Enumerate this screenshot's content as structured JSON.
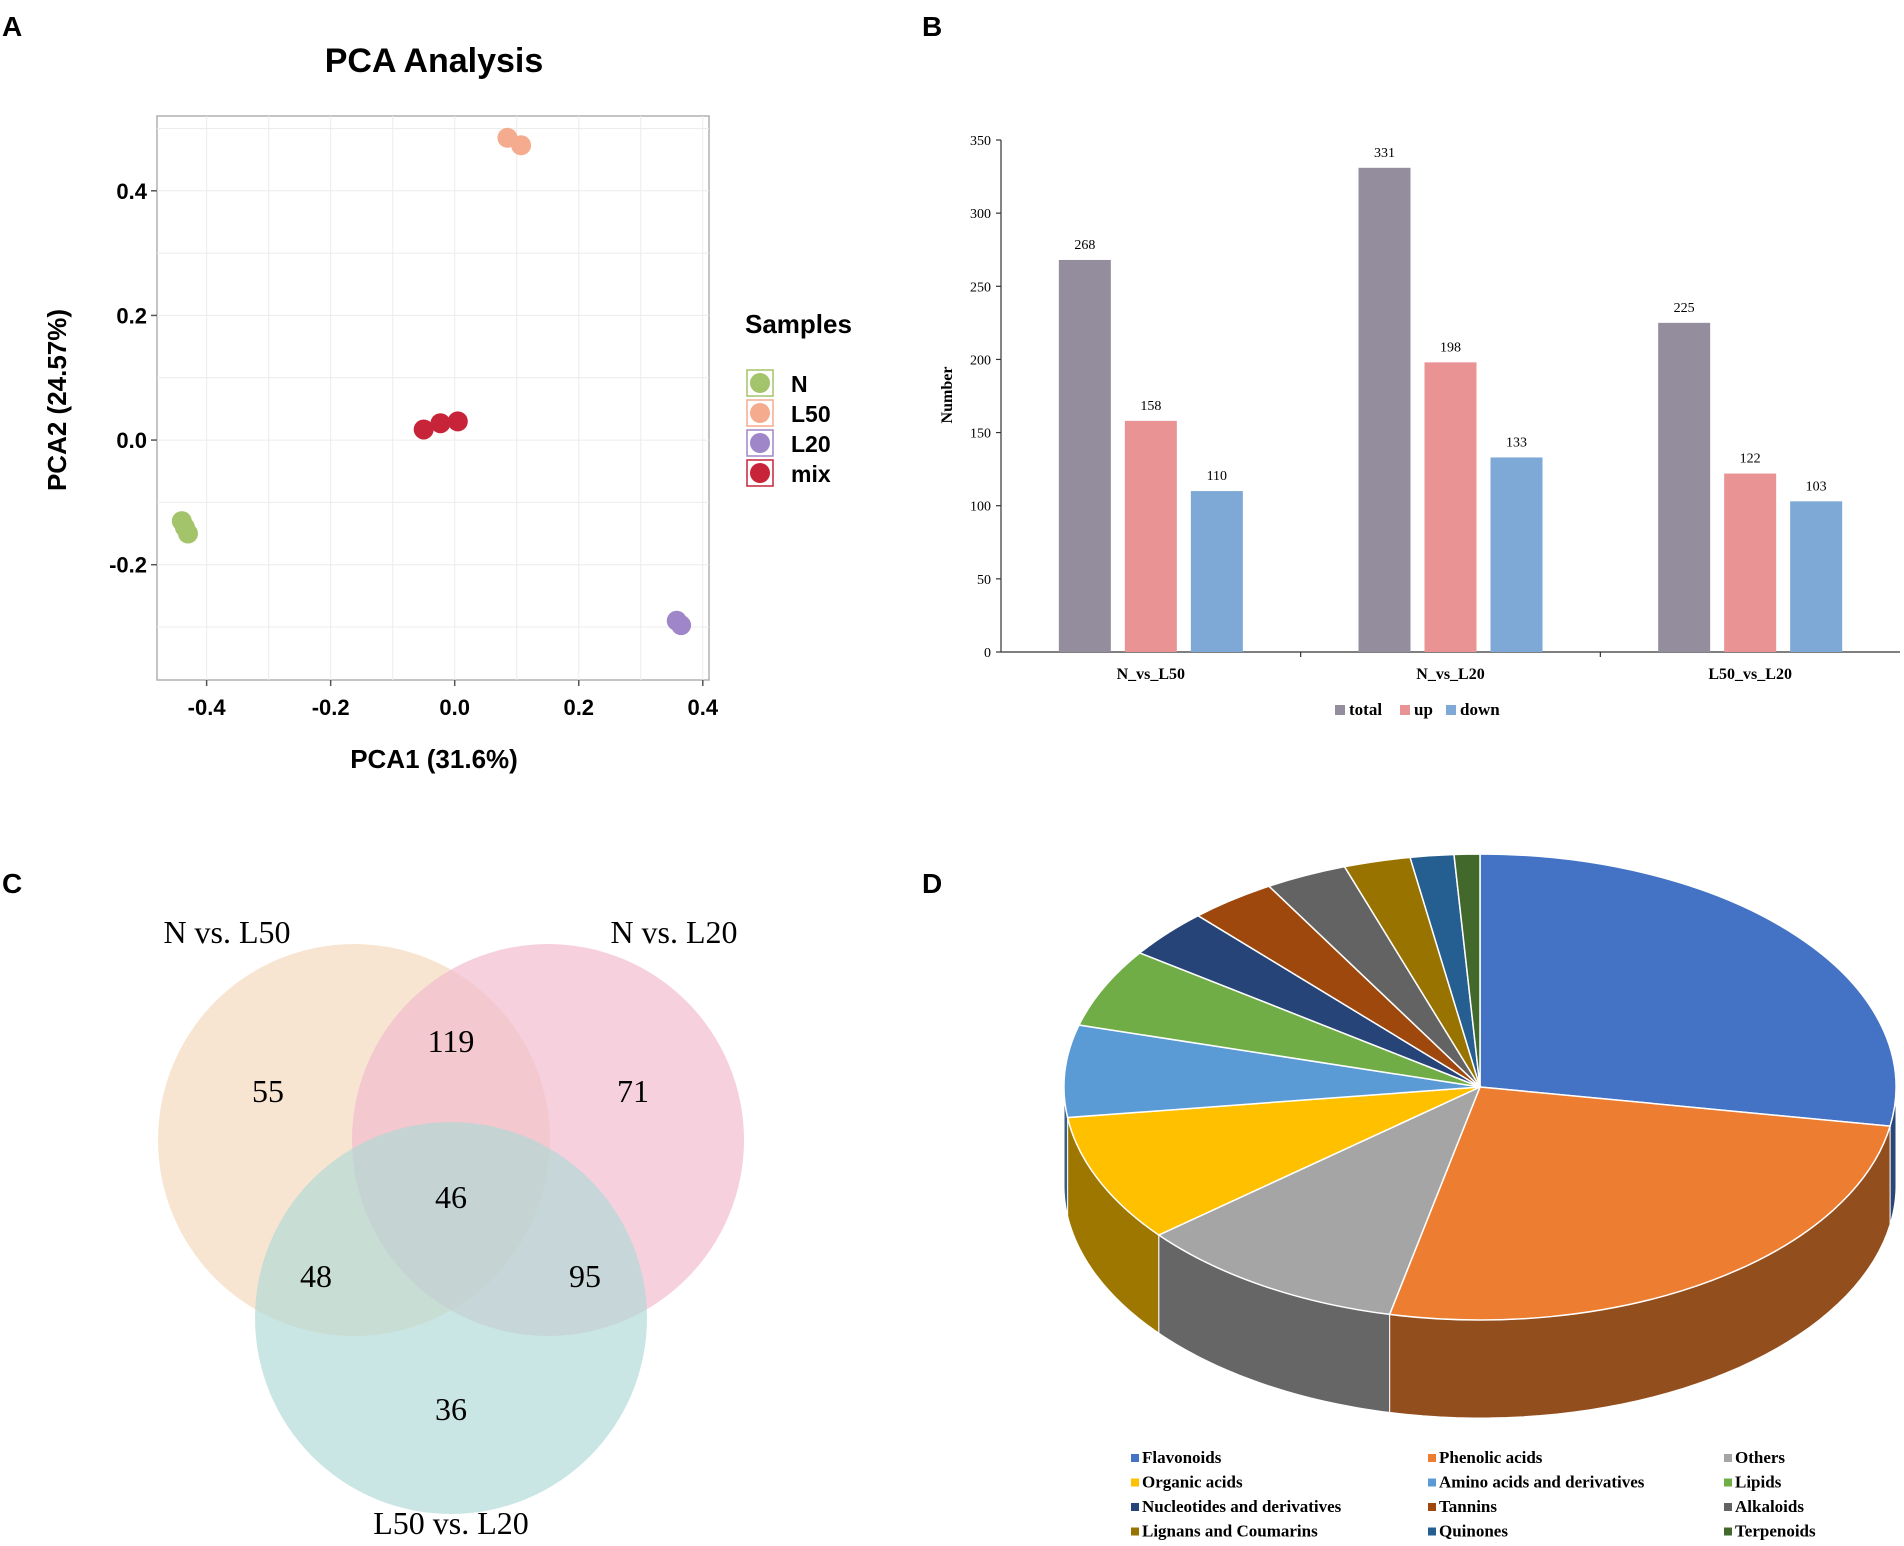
{
  "panels": {
    "a": "A",
    "b": "B",
    "c": "C",
    "d": "D"
  },
  "chart_data": [
    {
      "type": "scatter",
      "panel": "A",
      "title": "PCA Analysis",
      "xlabel": "PCA1 (31.6%)",
      "ylabel": "PCA2 (24.57%)",
      "xlim": [
        -0.48,
        0.41
      ],
      "ylim": [
        -0.385,
        0.52
      ],
      "xticks": [
        -0.4,
        -0.2,
        0.0,
        0.2,
        0.4
      ],
      "xtick_labels": [
        "-0.4",
        "-0.2",
        "0.0",
        "0.2",
        "0.4"
      ],
      "yticks": [
        -0.2,
        0.0,
        0.2,
        0.4
      ],
      "ytick_labels": [
        "-0.2",
        "0.0",
        "0.2",
        "0.4"
      ],
      "grid": true,
      "legend_title": "Samples",
      "legend_position": "right",
      "series": [
        {
          "name": "N",
          "color": "#a4c46b",
          "points": [
            [
              -0.44,
              -0.13
            ],
            [
              -0.435,
              -0.14
            ],
            [
              -0.43,
              -0.15
            ]
          ]
        },
        {
          "name": "L50",
          "color": "#f4ab8e",
          "points": [
            [
              0.085,
              0.485
            ],
            [
              0.107,
              0.473
            ]
          ]
        },
        {
          "name": "L20",
          "color": "#9e86c8",
          "points": [
            [
              0.358,
              -0.29
            ],
            [
              0.365,
              -0.297
            ]
          ]
        },
        {
          "name": "mix",
          "color": "#c7243a",
          "points": [
            [
              -0.05,
              0.017
            ],
            [
              -0.023,
              0.027
            ],
            [
              0.005,
              0.03
            ]
          ]
        }
      ]
    },
    {
      "type": "bar",
      "panel": "B",
      "ylabel": "Number",
      "xlabel": "",
      "ylim": [
        0,
        350
      ],
      "yticks": [
        0,
        50,
        100,
        150,
        200,
        250,
        300,
        350
      ],
      "ytick_labels": [
        "0",
        "50",
        "100",
        "150",
        "200",
        "250",
        "300",
        "350"
      ],
      "categories": [
        "N_vs_L50",
        "N_vs_L20",
        "L50_vs_L20"
      ],
      "legend_position": "bottom",
      "series": [
        {
          "name": "total",
          "color": "#948d9d",
          "values": [
            268,
            331,
            225
          ],
          "labels": [
            "268",
            "331",
            "225"
          ]
        },
        {
          "name": "up",
          "color": "#e99394",
          "values": [
            158,
            198,
            122
          ],
          "labels": [
            "158",
            "198",
            "122"
          ]
        },
        {
          "name": "down",
          "color": "#7ea9d6",
          "values": [
            110,
            133,
            103
          ],
          "labels": [
            "110",
            "133",
            "103"
          ]
        }
      ]
    },
    {
      "type": "venn",
      "panel": "C",
      "sets": [
        {
          "name": "N vs. L50",
          "color": "#f6dcc2"
        },
        {
          "name": "N vs. L20",
          "color": "#f2bccf"
        },
        {
          "name": "L50 vs. L20",
          "color": "#aed8d5"
        }
      ],
      "regions": {
        "only_a": "55",
        "only_b": "71",
        "only_c": "36",
        "a_b": "119",
        "a_c": "48",
        "b_c": "95",
        "a_b_c": "46"
      }
    },
    {
      "type": "pie",
      "panel": "D",
      "style": "3d",
      "legend_position": "bottom",
      "slices": [
        {
          "label": "Flavonoids",
          "value": 27.8,
          "color": "#4472c4"
        },
        {
          "label": "Phenolic acids",
          "value": 25.9,
          "color": "#ed7d31"
        },
        {
          "label": "Others",
          "value": 10.6,
          "color": "#a5a5a5"
        },
        {
          "label": "Organic acids",
          "value": 8.9,
          "color": "#ffc000"
        },
        {
          "label": "Amino acids and derivatives",
          "value": 6.4,
          "color": "#5b9bd5"
        },
        {
          "label": "Lipids",
          "value": 5.5,
          "color": "#70ad47"
        },
        {
          "label": "Nucleotides and derivatives",
          "value": 3.4,
          "color": "#264478"
        },
        {
          "label": "Tannins",
          "value": 3.4,
          "color": "#9e480e"
        },
        {
          "label": "Alkaloids",
          "value": 3.2,
          "color": "#636363"
        },
        {
          "label": "Lignans and Coumarins",
          "value": 2.6,
          "color": "#997300"
        },
        {
          "label": "Quinones",
          "value": 1.7,
          "color": "#255e91"
        },
        {
          "label": "Terpenoids",
          "value": 1.0,
          "color": "#43682b"
        }
      ]
    }
  ]
}
